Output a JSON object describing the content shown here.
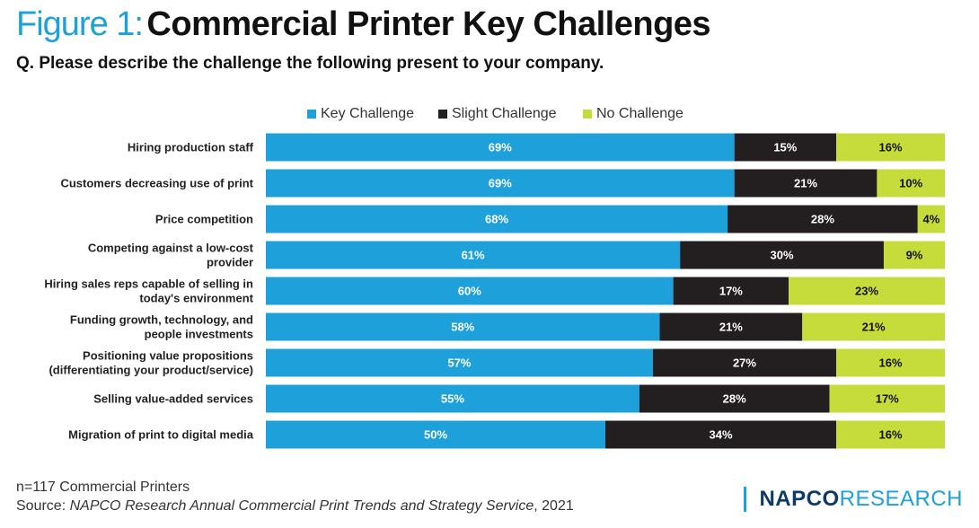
{
  "header": {
    "figure_label": "Figure 1:",
    "title": "Commercial Printer Key Challenges",
    "question": "Q. Please describe the challenge the following present to your company."
  },
  "colors": {
    "key": "#1ea0db",
    "slight": "#231f20",
    "none": "#c6dc3b",
    "title_accent": "#1ea0db"
  },
  "chart_data": {
    "type": "bar",
    "orientation": "horizontal",
    "stacked": true,
    "categories": [
      "Hiring production staff",
      "Customers decreasing use of print",
      "Price competition",
      "Competing against a low-cost provider",
      "Hiring sales reps capable of selling in today's environment",
      "Funding growth, technology, and people investments",
      "Positioning value propositions (differentiating your product/service)",
      "Selling value-added services",
      "Migration of print to digital media"
    ],
    "category_lines": [
      [
        "Hiring production staff"
      ],
      [
        "Customers decreasing use of print"
      ],
      [
        "Price competition"
      ],
      [
        "Competing against a low-cost",
        "provider"
      ],
      [
        "Hiring sales reps capable of selling in",
        "today's environment"
      ],
      [
        "Funding growth, technology, and",
        "people investments"
      ],
      [
        "Positioning value propositions",
        "(differentiating your product/service)"
      ],
      [
        "Selling value-added services"
      ],
      [
        "Migration of print to digital media"
      ]
    ],
    "series": [
      {
        "name": "Key Challenge",
        "values": [
          69,
          69,
          68,
          61,
          60,
          58,
          57,
          55,
          50
        ]
      },
      {
        "name": "Slight Challenge",
        "values": [
          15,
          21,
          28,
          30,
          17,
          21,
          27,
          28,
          34
        ]
      },
      {
        "name": "No Challenge",
        "values": [
          16,
          10,
          4,
          9,
          23,
          21,
          16,
          17,
          16
        ]
      }
    ],
    "value_suffix": "%",
    "xlim": [
      0,
      100
    ],
    "legend_position": "top",
    "grid": false
  },
  "footer": {
    "note": "n=117 Commercial Printers",
    "source_prefix": "Source: ",
    "source_title": "NAPCO Research Annual Commercial Print Trends and Strategy Service",
    "source_suffix": ", 2021",
    "logo_part1": "NAPCO",
    "logo_part2": "RESEARCH"
  }
}
